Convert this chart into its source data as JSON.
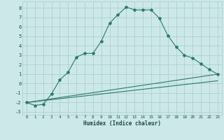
{
  "xlabel": "Humidex (Indice chaleur)",
  "bg_color": "#cce8e8",
  "grid_color": "#aacccc",
  "line_color": "#2a7a6a",
  "xlim": [
    -0.5,
    23.5
  ],
  "ylim": [
    -3.3,
    8.7
  ],
  "xticks": [
    0,
    1,
    2,
    3,
    4,
    5,
    6,
    7,
    8,
    9,
    10,
    11,
    12,
    13,
    14,
    15,
    16,
    17,
    18,
    19,
    20,
    21,
    22,
    23
  ],
  "yticks": [
    -3,
    -2,
    -1,
    0,
    1,
    2,
    3,
    4,
    5,
    6,
    7,
    8
  ],
  "line1_x": [
    0,
    1,
    2,
    3,
    4,
    5,
    6,
    7,
    8,
    9,
    10,
    11,
    12,
    13,
    14,
    15,
    16,
    17,
    18,
    19,
    20,
    21,
    22,
    23
  ],
  "line1_y": [
    -2.0,
    -2.3,
    -2.2,
    -1.1,
    0.4,
    1.2,
    2.8,
    3.2,
    3.2,
    4.5,
    6.4,
    7.3,
    8.1,
    7.8,
    7.8,
    7.8,
    6.9,
    5.1,
    3.9,
    3.0,
    2.7,
    2.1,
    1.5,
    1.0
  ],
  "line2_x": [
    0,
    23
  ],
  "line2_y": [
    -2.0,
    1.0
  ],
  "line3_x": [
    0,
    23
  ],
  "line3_y": [
    -2.0,
    0.3
  ]
}
